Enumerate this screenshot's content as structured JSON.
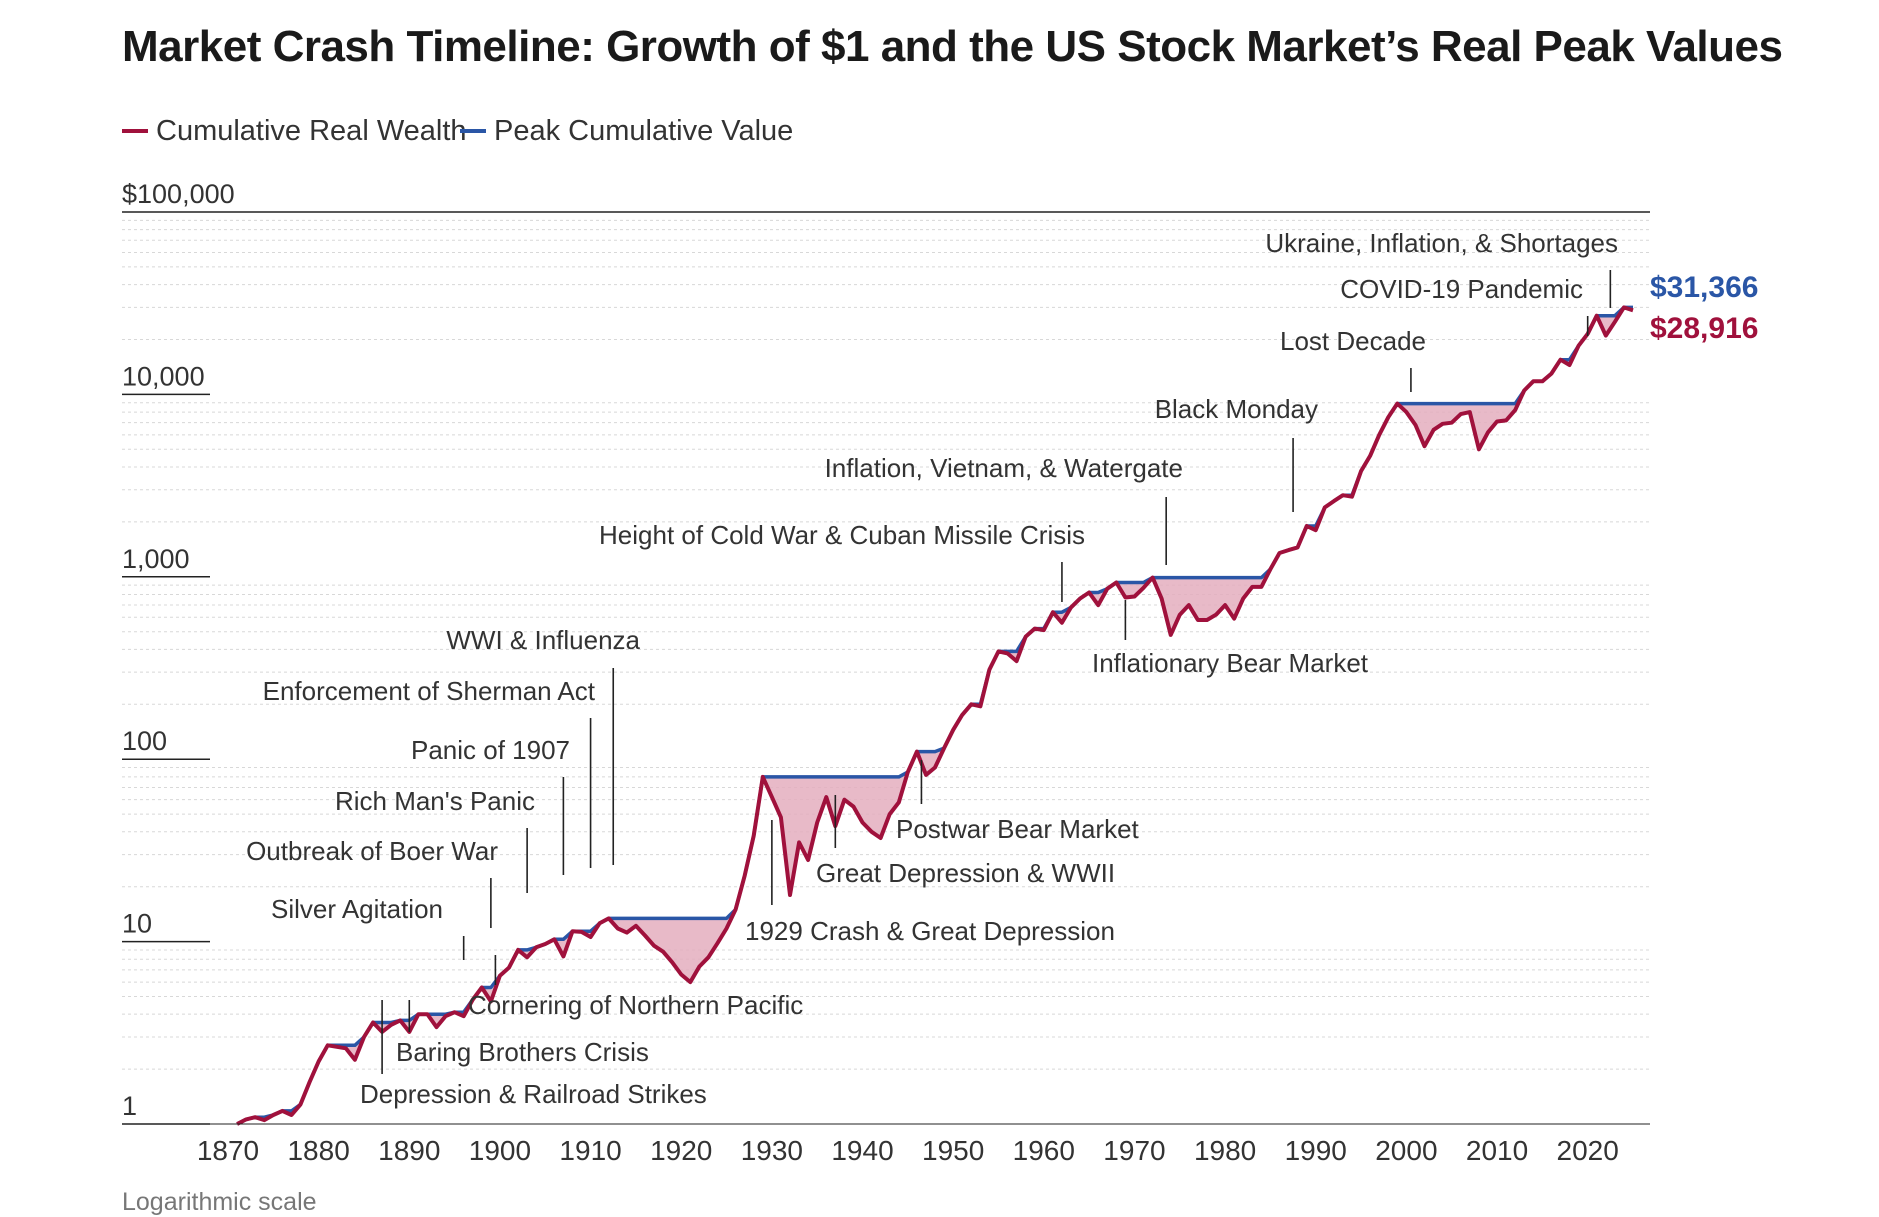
{
  "title": "Market Crash Timeline: Growth of $1 and the US Stock Market’s Real Peak Values",
  "footnote": "Logarithmic scale",
  "colors": {
    "real": "#a0113c",
    "peak": "#2a56a6",
    "fill": "#e4aebe",
    "grid": "#d8d8d8",
    "axis": "#222222"
  },
  "chart_data": {
    "type": "line",
    "title": "Market Crash Timeline: Growth of $1 and the US Stock Market’s Real Peak Values",
    "xlabel": "",
    "ylabel": "",
    "yscale": "log",
    "xlim": [
      1870,
      2025
    ],
    "ylim": [
      1,
      100000
    ],
    "grid": true,
    "legend": "top-left",
    "y_ticks": [
      {
        "value": 100000,
        "label": "$100,000"
      },
      {
        "value": 10000,
        "label": "10,000"
      },
      {
        "value": 1000,
        "label": "1,000"
      },
      {
        "value": 100,
        "label": "100"
      },
      {
        "value": 10,
        "label": "10"
      },
      {
        "value": 1,
        "label": "1"
      }
    ],
    "x_ticks": [
      "1870",
      "1880",
      "1890",
      "1900",
      "1910",
      "1920",
      "1930",
      "1940",
      "1950",
      "1960",
      "1970",
      "1980",
      "1990",
      "2000",
      "2010",
      "2020"
    ],
    "series": [
      {
        "name": "Cumulative Real Wealth",
        "color": "#a0113c",
        "points": [
          [
            1871,
            1.0
          ],
          [
            1872,
            1.06
          ],
          [
            1873,
            1.09
          ],
          [
            1874,
            1.05
          ],
          [
            1875,
            1.12
          ],
          [
            1876,
            1.18
          ],
          [
            1877,
            1.12
          ],
          [
            1878,
            1.28
          ],
          [
            1879,
            1.7
          ],
          [
            1880,
            2.2
          ],
          [
            1881,
            2.7
          ],
          [
            1882,
            2.65
          ],
          [
            1883,
            2.6
          ],
          [
            1884,
            2.25
          ],
          [
            1885,
            3.0
          ],
          [
            1886,
            3.6
          ],
          [
            1887,
            3.2
          ],
          [
            1888,
            3.5
          ],
          [
            1889,
            3.7
          ],
          [
            1890,
            3.2
          ],
          [
            1891,
            4.0
          ],
          [
            1892,
            4.0
          ],
          [
            1893,
            3.4
          ],
          [
            1894,
            3.9
          ],
          [
            1895,
            4.1
          ],
          [
            1896,
            3.9
          ],
          [
            1897,
            4.8
          ],
          [
            1898,
            5.6
          ],
          [
            1899,
            4.7
          ],
          [
            1900,
            6.5
          ],
          [
            1901,
            7.2
          ],
          [
            1902,
            9.0
          ],
          [
            1903,
            8.2
          ],
          [
            1904,
            9.3
          ],
          [
            1905,
            9.7
          ],
          [
            1906,
            10.3
          ],
          [
            1907,
            8.3
          ],
          [
            1908,
            11.4
          ],
          [
            1909,
            11.3
          ],
          [
            1910,
            10.6
          ],
          [
            1911,
            12.6
          ],
          [
            1912,
            13.4
          ],
          [
            1913,
            11.8
          ],
          [
            1914,
            11.2
          ],
          [
            1915,
            12.2
          ],
          [
            1916,
            10.8
          ],
          [
            1917,
            9.5
          ],
          [
            1918,
            8.8
          ],
          [
            1919,
            7.7
          ],
          [
            1920,
            6.6
          ],
          [
            1921,
            6.0
          ],
          [
            1922,
            7.3
          ],
          [
            1923,
            8.2
          ],
          [
            1924,
            9.8
          ],
          [
            1925,
            11.8
          ],
          [
            1926,
            15.0
          ],
          [
            1927,
            23.0
          ],
          [
            1928,
            38.0
          ],
          [
            1929,
            80.0
          ],
          [
            1930,
            62.0
          ],
          [
            1931,
            48.0
          ],
          [
            1932,
            18.0
          ],
          [
            1933,
            35.0
          ],
          [
            1934,
            28.0
          ],
          [
            1935,
            45.0
          ],
          [
            1936,
            62.0
          ],
          [
            1937,
            43.0
          ],
          [
            1938,
            60.0
          ],
          [
            1939,
            55.0
          ],
          [
            1940,
            45.0
          ],
          [
            1941,
            40.0
          ],
          [
            1942,
            37.0
          ],
          [
            1943,
            50.0
          ],
          [
            1944,
            58.0
          ],
          [
            1945,
            85.0
          ],
          [
            1946,
            110.0
          ],
          [
            1947,
            82.0
          ],
          [
            1948,
            90.0
          ],
          [
            1949,
            115.0
          ],
          [
            1950,
            145.0
          ],
          [
            1951,
            175.0
          ],
          [
            1952,
            200.0
          ],
          [
            1953,
            195.0
          ],
          [
            1954,
            310.0
          ],
          [
            1955,
            390.0
          ],
          [
            1956,
            380.0
          ],
          [
            1957,
            345.0
          ],
          [
            1958,
            470.0
          ],
          [
            1959,
            520.0
          ],
          [
            1960,
            510.0
          ],
          [
            1961,
            640.0
          ],
          [
            1962,
            560.0
          ],
          [
            1963,
            680.0
          ],
          [
            1964,
            760.0
          ],
          [
            1965,
            820.0
          ],
          [
            1966,
            700.0
          ],
          [
            1967,
            860.0
          ],
          [
            1968,
            930.0
          ],
          [
            1969,
            770.0
          ],
          [
            1970,
            780.0
          ],
          [
            1971,
            870.0
          ],
          [
            1972,
            990.0
          ],
          [
            1973,
            760.0
          ],
          [
            1974,
            480.0
          ],
          [
            1975,
            620.0
          ],
          [
            1976,
            700.0
          ],
          [
            1977,
            580.0
          ],
          [
            1978,
            580.0
          ],
          [
            1979,
            620.0
          ],
          [
            1980,
            700.0
          ],
          [
            1981,
            590.0
          ],
          [
            1982,
            760.0
          ],
          [
            1983,
            880.0
          ],
          [
            1984,
            880.0
          ],
          [
            1985,
            1100.0
          ],
          [
            1986,
            1350.0
          ],
          [
            1987,
            1400.0
          ],
          [
            1988,
            1450.0
          ],
          [
            1989,
            1900.0
          ],
          [
            1990,
            1800.0
          ],
          [
            1991,
            2400.0
          ],
          [
            1992,
            2600.0
          ],
          [
            1993,
            2800.0
          ],
          [
            1994,
            2750.0
          ],
          [
            1995,
            3800.0
          ],
          [
            1996,
            4600.0
          ],
          [
            1997,
            6000.0
          ],
          [
            1998,
            7500.0
          ],
          [
            1999,
            8900.0
          ],
          [
            2000,
            8000.0
          ],
          [
            2001,
            6800.0
          ],
          [
            2002,
            5200.0
          ],
          [
            2003,
            6400.0
          ],
          [
            2004,
            6900.0
          ],
          [
            2005,
            7000.0
          ],
          [
            2006,
            7800.0
          ],
          [
            2007,
            8000.0
          ],
          [
            2008,
            5000.0
          ],
          [
            2009,
            6200.0
          ],
          [
            2010,
            7100.0
          ],
          [
            2011,
            7200.0
          ],
          [
            2012,
            8200.0
          ],
          [
            2013,
            10500.0
          ],
          [
            2014,
            11800.0
          ],
          [
            2015,
            11800.0
          ],
          [
            2016,
            13000.0
          ],
          [
            2017,
            15500.0
          ],
          [
            2018,
            14500.0
          ],
          [
            2019,
            18500.0
          ],
          [
            2020,
            21500.0
          ],
          [
            2021,
            27000.0
          ],
          [
            2022,
            21000.0
          ],
          [
            2023,
            25000.0
          ],
          [
            2024,
            30000.0
          ],
          [
            2025,
            28916.0
          ]
        ]
      },
      {
        "name": "Peak Cumulative Value",
        "color": "#2a56a6",
        "note": "running maximum of Cumulative Real Wealth"
      }
    ],
    "end_labels": {
      "peak": "$31,366",
      "real": "$28,916"
    },
    "annotations": [
      {
        "label": "Depression & Railroad Strikes",
        "year": 1887
      },
      {
        "label": "Baring Brothers Crisis",
        "year": 1890
      },
      {
        "label": "Silver Agitation",
        "year": 1896
      },
      {
        "label": "Cornering of Northern Pacific",
        "year": 1899.5
      },
      {
        "label": "Outbreak of Boer War",
        "year": 1899
      },
      {
        "label": "Rich Man's Panic",
        "year": 1903
      },
      {
        "label": "Panic of 1907",
        "year": 1907
      },
      {
        "label": "Enforcement of Sherman Act",
        "year": 1910
      },
      {
        "label": "WWI & Influenza",
        "year": 1912.5
      },
      {
        "label": "1929 Crash & Great Depression",
        "year": 1930
      },
      {
        "label": "Great Depression & WWII",
        "year": 1937
      },
      {
        "label": "Postwar Bear Market",
        "year": 1946.5
      },
      {
        "label": "Height of Cold War & Cuban Missile Crisis",
        "year": 1962
      },
      {
        "label": "Inflationary Bear Market",
        "year": 1969
      },
      {
        "label": "Inflation, Vietnam, & Watergate",
        "year": 1973.5
      },
      {
        "label": "Black Monday",
        "year": 1987.5
      },
      {
        "label": "Lost Decade",
        "year": 2000.5
      },
      {
        "label": "COVID-19 Pandemic",
        "year": 2020
      },
      {
        "label": "Ukraine, Inflation, & Shortages",
        "year": 2022.5
      }
    ]
  },
  "legend": {
    "real": "Cumulative Real Wealth",
    "peak": "Peak Cumulative Value"
  }
}
